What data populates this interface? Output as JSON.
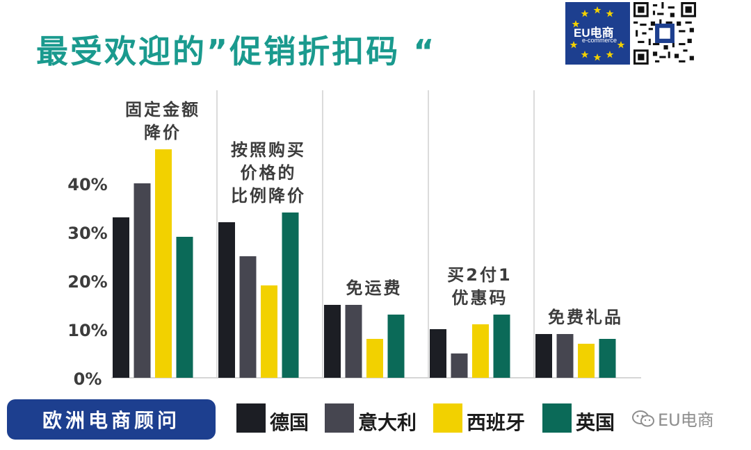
{
  "header": {
    "title": "最受欢迎的”促销折扣码 “",
    "logo_text": "EU电商",
    "logo_sub": "e-commerce"
  },
  "bottom": {
    "button_label": "欧洲电商顾问",
    "watermark": "EU电商"
  },
  "colors": {
    "title": "#1a9a8e",
    "brand_blue": "#1d3f8f",
    "series": [
      "#1c1e24",
      "#464650",
      "#f2d100",
      "#0b6a58"
    ]
  },
  "chart_data": {
    "type": "bar",
    "categories": [
      [
        "固定金额",
        "降价"
      ],
      [
        "按照购买",
        "价格的",
        "比例降价"
      ],
      [
        "免运费"
      ],
      [
        "买2付1",
        "优惠码"
      ],
      [
        "免费礼品"
      ]
    ],
    "series": [
      {
        "name": "德国",
        "values": [
          33,
          32,
          15,
          10,
          9
        ]
      },
      {
        "name": "意大利",
        "values": [
          40,
          25,
          15,
          5,
          9
        ]
      },
      {
        "name": "西班牙",
        "values": [
          47,
          19,
          8,
          11,
          7
        ]
      },
      {
        "name": "英国",
        "values": [
          29,
          34,
          13,
          13,
          8
        ]
      }
    ],
    "yticks": [
      "0%",
      "10%",
      "20%",
      "30%",
      "40%"
    ],
    "ylim": [
      0,
      50
    ],
    "grid": false,
    "group_separators": true,
    "legend_position": "bottom"
  }
}
